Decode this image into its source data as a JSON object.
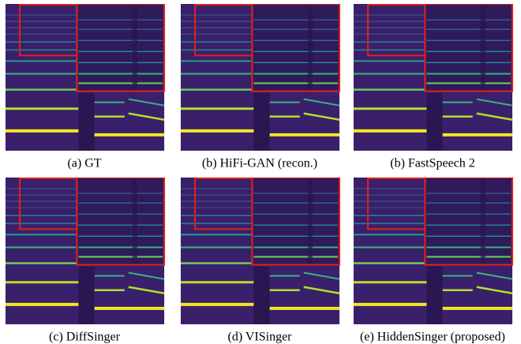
{
  "panels": [
    {
      "caption": "(a) GT"
    },
    {
      "caption": "(b) HiFi-GAN (recon.)"
    },
    {
      "caption": "(b) FastSpeech 2"
    },
    {
      "caption": "(c) DiffSinger"
    },
    {
      "caption": "(d) VISinger"
    },
    {
      "caption": "(e) HiddenSinger (proposed)"
    }
  ]
}
